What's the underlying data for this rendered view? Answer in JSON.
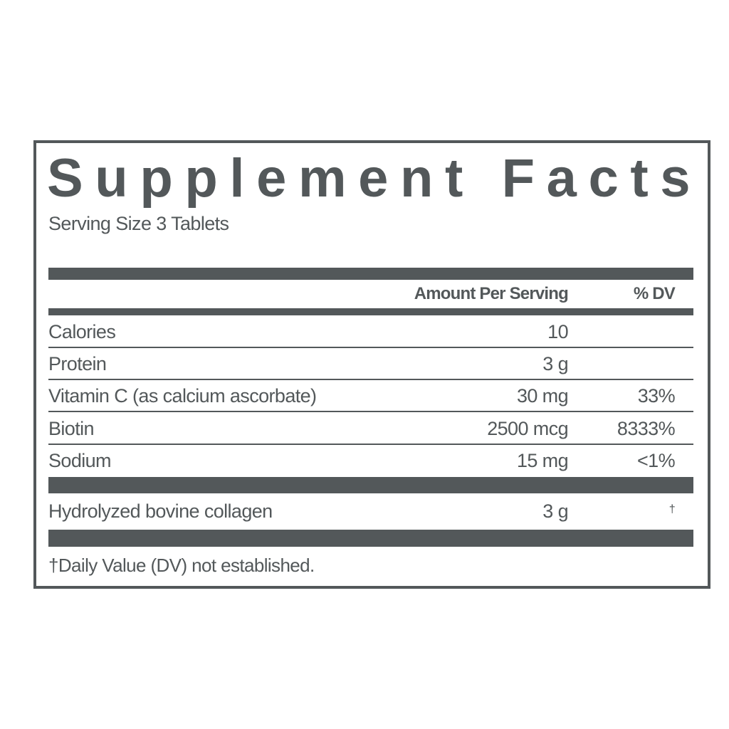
{
  "title": "Supplement Facts",
  "serving_size": "Serving Size 3 Tablets",
  "header": {
    "amount": "Amount Per Serving",
    "dv": "% DV"
  },
  "rows": [
    {
      "name": "Calories",
      "amount": "10",
      "dv": ""
    },
    {
      "name": "Protein",
      "amount": "3 g",
      "dv": ""
    },
    {
      "name": "Vitamin C (as calcium ascorbate)",
      "amount": "30 mg",
      "dv": "33%"
    },
    {
      "name": "Biotin",
      "amount": "2500 mcg",
      "dv": "8333%"
    },
    {
      "name": "Sodium",
      "amount": "15 mg",
      "dv": "<1%"
    }
  ],
  "other": {
    "name": "Hydrolyzed bovine collagen",
    "amount": "3 g",
    "dv": "†"
  },
  "footnote": "†Daily Value (DV) not established.",
  "colors": {
    "ink": "#53585a",
    "background": "#ffffff"
  }
}
